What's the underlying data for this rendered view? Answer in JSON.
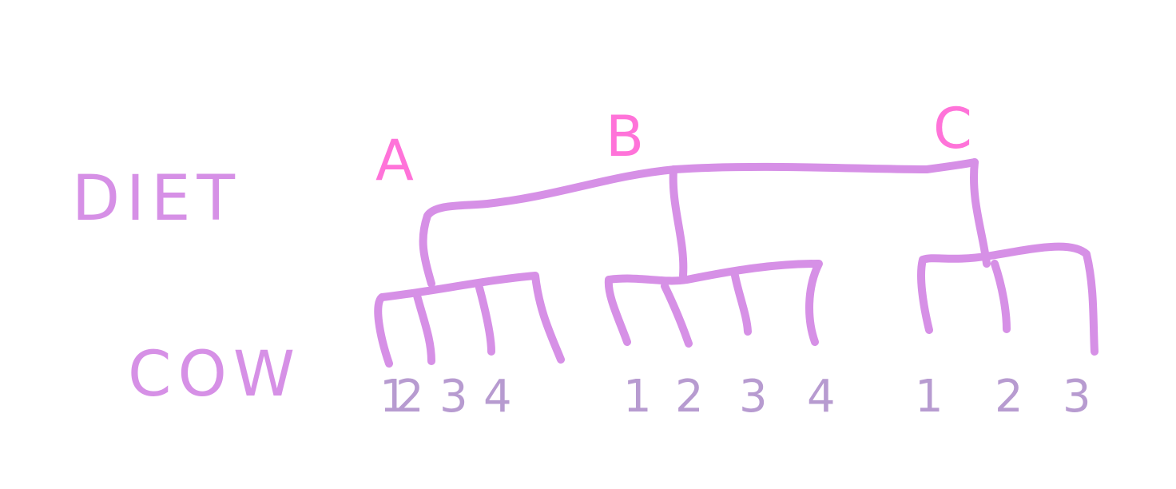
{
  "labels": {
    "diet": "DIET",
    "cow": "COW"
  },
  "groups": [
    {
      "label": "A",
      "cows": [
        "1",
        "2",
        "3",
        "4"
      ]
    },
    {
      "label": "B",
      "cows": [
        "1",
        "2",
        "3",
        "4"
      ]
    },
    {
      "label": "C",
      "cows": [
        "1",
        "2",
        "3"
      ]
    }
  ]
}
